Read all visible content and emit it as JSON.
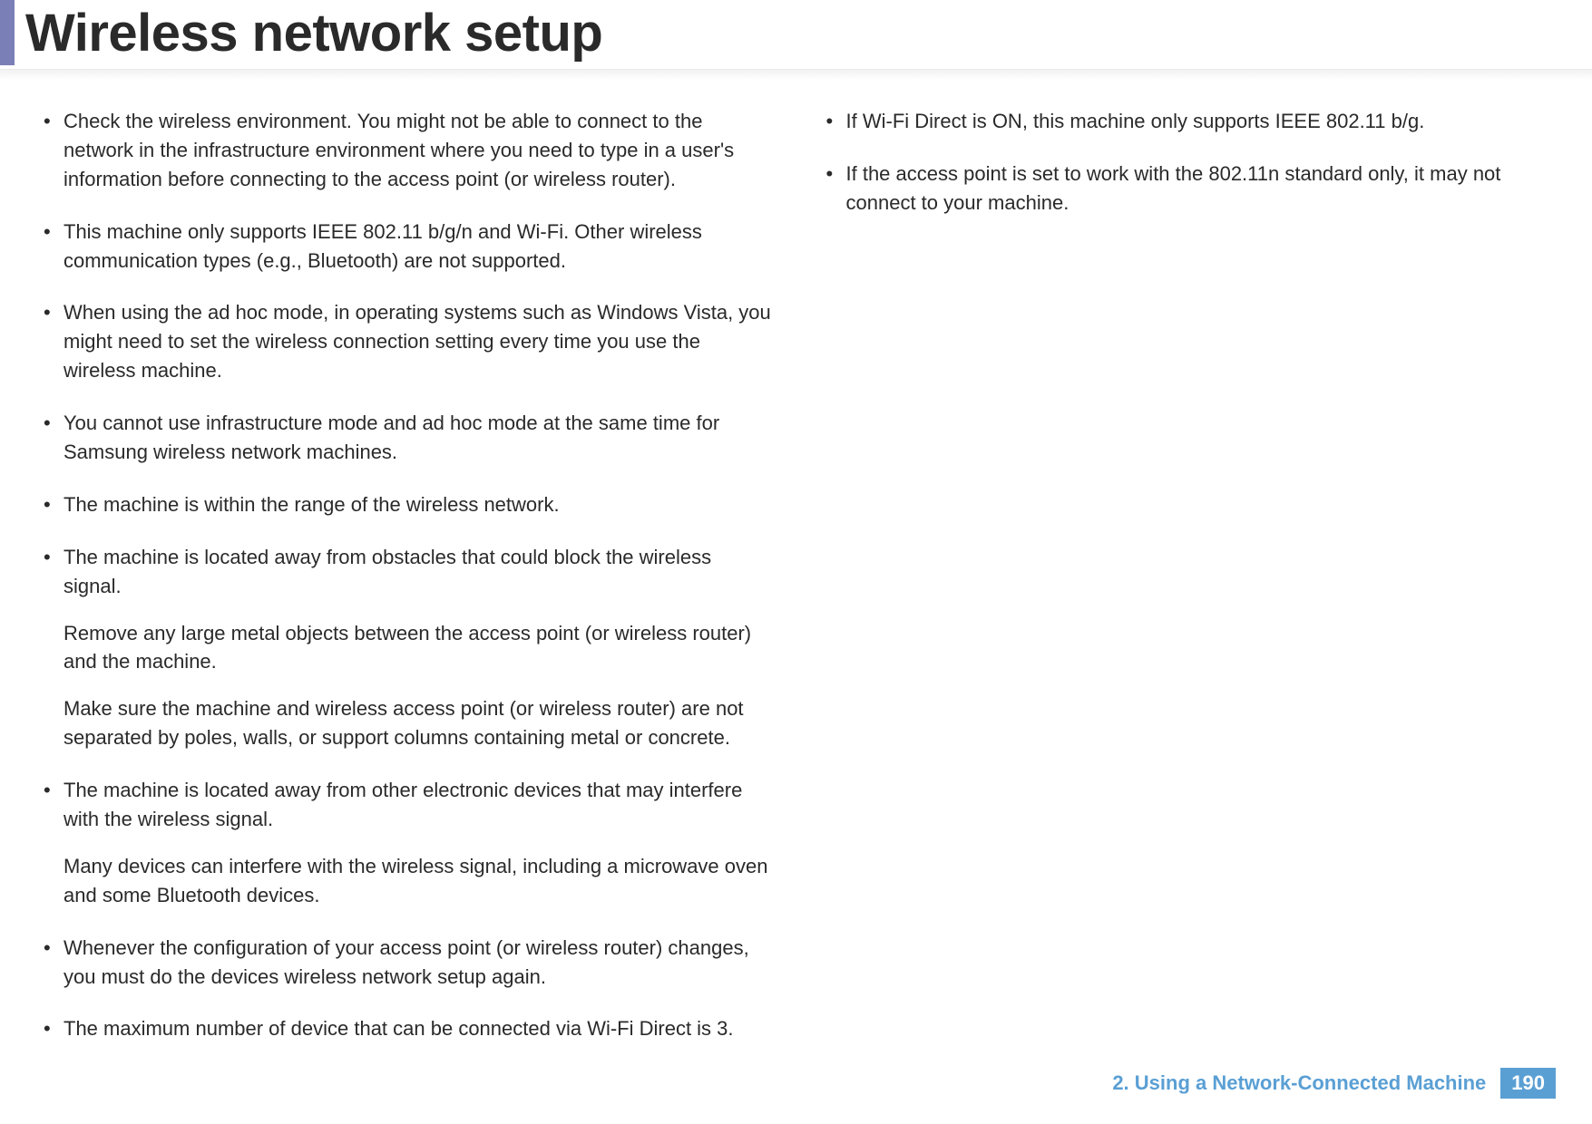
{
  "header": {
    "title": "Wireless network setup",
    "accent_color": "#7b7fb8"
  },
  "columns": {
    "left": {
      "items": [
        {
          "text": "Check the wireless environment. You might not be able to connect to the network in the infrastructure environment where you need to type in a user's information before connecting to the access point (or wireless router).",
          "subs": []
        },
        {
          "text": "This machine only supports IEEE 802.11 b/g/n and Wi-Fi. Other wireless communication types (e.g., Bluetooth) are not supported.",
          "subs": []
        },
        {
          "text": "When using the ad hoc mode, in operating systems such as Windows Vista, you might need to set the wireless connection setting every time you use the wireless machine.",
          "subs": []
        },
        {
          "text": "You cannot use infrastructure mode and ad hoc mode at the same time for Samsung wireless network machines.",
          "subs": []
        },
        {
          "text": "The machine is within the range of the wireless network.",
          "subs": []
        },
        {
          "text": "The machine is located away from obstacles that could block the wireless signal.",
          "subs": [
            "Remove any large metal objects between the access point (or wireless router) and the machine.",
            "Make sure the machine and wireless access point (or wireless router) are not separated by poles, walls, or support columns containing metal or concrete."
          ]
        },
        {
          "text": "The machine is located away from other electronic devices that may interfere with the wireless signal.",
          "subs": [
            "Many devices can interfere with the wireless signal, including a microwave oven and some Bluetooth devices."
          ]
        },
        {
          "text": "Whenever the configuration of your access point (or wireless router) changes, you must do the devices wireless network setup again.",
          "subs": []
        },
        {
          "text": "The maximum number of device that can be connected via Wi-Fi Direct is 3.",
          "subs": []
        }
      ]
    },
    "right": {
      "items": [
        {
          "text": "If Wi-Fi Direct is ON, this machine only supports IEEE 802.11 b/g.",
          "subs": []
        },
        {
          "text": "If the access point is set to work with the 802.11n standard only, it may not connect to your machine.",
          "subs": []
        }
      ]
    }
  },
  "footer": {
    "chapter": "2.  Using a Network-Connected Machine",
    "page_number": "190",
    "text_color": "#5a9fd4",
    "badge_bg": "#5a9fd4"
  },
  "typography": {
    "title_fontsize": 58,
    "body_fontsize": 22,
    "footer_fontsize": 22
  },
  "colors": {
    "background": "#ffffff",
    "text": "#2a2a2a",
    "accent": "#7b7fb8",
    "footer_blue": "#5a9fd4"
  }
}
